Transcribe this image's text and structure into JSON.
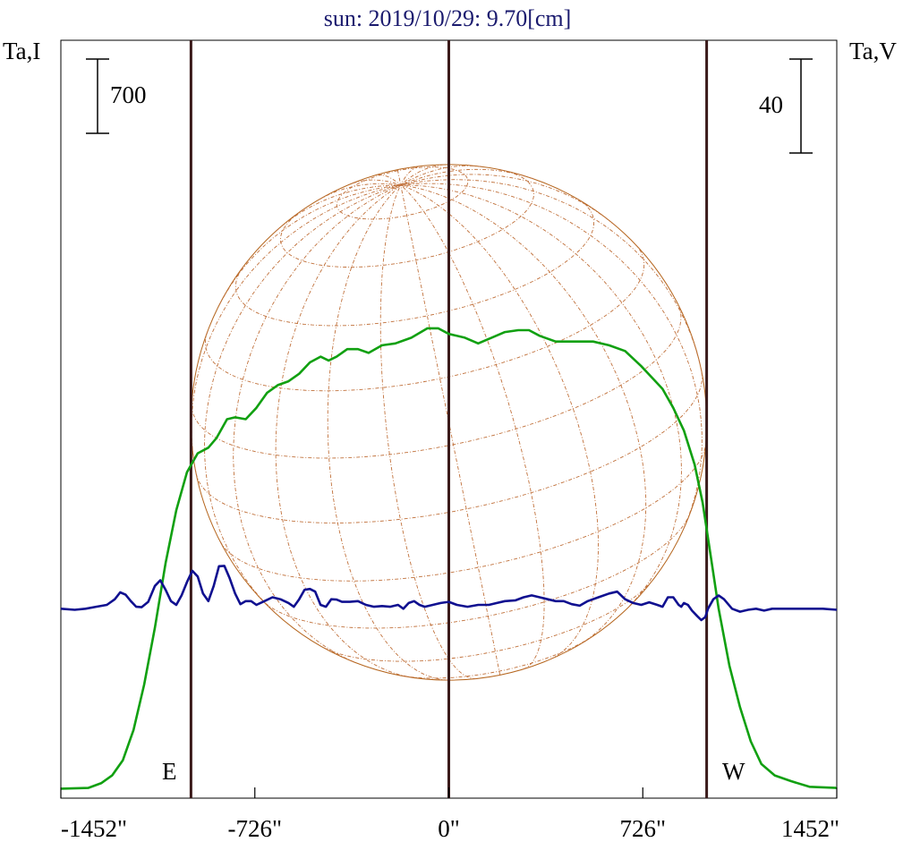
{
  "chart_data": {
    "type": "line",
    "title": "sun: 2019/10/29: 9.70[cm]",
    "title_color": "#1a1a6e",
    "left_axis_label": "Ta,I",
    "right_axis_label": "Ta,V",
    "x_unit": "arcsec",
    "xlim": [
      -1452,
      1452
    ],
    "x_ticks": [
      -1452,
      -726,
      0,
      726,
      1452
    ],
    "x_tick_labels": [
      "-1452\"",
      "-726\"",
      "0\"",
      "726\"",
      "1452\""
    ],
    "scale_bars": {
      "left": {
        "label": "700"
      },
      "right": {
        "label": "40"
      }
    },
    "limb_markers": {
      "east": "E",
      "west": "W"
    },
    "vertical_lines_x": [
      -965,
      0,
      965
    ],
    "disk_radius_arcsec": 965,
    "series": [
      {
        "color": "#11a011",
        "axis": "left",
        "values_y_frac": [
          [
            -1452,
            0.025
          ],
          [
            -1350,
            0.027
          ],
          [
            -1300,
            0.04
          ],
          [
            -1260,
            0.06
          ],
          [
            -1220,
            0.1
          ],
          [
            -1180,
            0.18
          ],
          [
            -1140,
            0.3
          ],
          [
            -1100,
            0.45
          ],
          [
            -1060,
            0.62
          ],
          [
            -1020,
            0.76
          ],
          [
            -980,
            0.86
          ],
          [
            -940,
            0.91
          ],
          [
            -900,
            0.925
          ],
          [
            -870,
            0.95
          ],
          [
            -830,
            1.0
          ],
          [
            -800,
            1.005
          ],
          [
            -760,
            1.0
          ],
          [
            -720,
            1.03
          ],
          [
            -680,
            1.07
          ],
          [
            -640,
            1.09
          ],
          [
            -600,
            1.1
          ],
          [
            -560,
            1.12
          ],
          [
            -520,
            1.15
          ],
          [
            -480,
            1.165
          ],
          [
            -450,
            1.155
          ],
          [
            -420,
            1.165
          ],
          [
            -380,
            1.185
          ],
          [
            -340,
            1.185
          ],
          [
            -300,
            1.175
          ],
          [
            -250,
            1.195
          ],
          [
            -200,
            1.2
          ],
          [
            -140,
            1.215
          ],
          [
            -80,
            1.24
          ],
          [
            -40,
            1.24
          ],
          [
            0,
            1.225
          ],
          [
            60,
            1.215
          ],
          [
            110,
            1.2
          ],
          [
            160,
            1.215
          ],
          [
            210,
            1.23
          ],
          [
            260,
            1.235
          ],
          [
            300,
            1.235
          ],
          [
            340,
            1.22
          ],
          [
            400,
            1.205
          ],
          [
            460,
            1.205
          ],
          [
            540,
            1.205
          ],
          [
            600,
            1.195
          ],
          [
            660,
            1.18
          ],
          [
            720,
            1.14
          ],
          [
            760,
            1.11
          ],
          [
            800,
            1.08
          ],
          [
            840,
            1.03
          ],
          [
            880,
            0.97
          ],
          [
            920,
            0.88
          ],
          [
            950,
            0.78
          ],
          [
            980,
            0.64
          ],
          [
            1010,
            0.5
          ],
          [
            1050,
            0.35
          ],
          [
            1090,
            0.24
          ],
          [
            1130,
            0.15
          ],
          [
            1170,
            0.09
          ],
          [
            1220,
            0.06
          ],
          [
            1280,
            0.045
          ],
          [
            1350,
            0.03
          ],
          [
            1452,
            0.027
          ]
        ]
      },
      {
        "color": "#101090",
        "axis": "right",
        "values_y_frac": [
          [
            -1452,
            0.5
          ],
          [
            -1400,
            0.497
          ],
          [
            -1360,
            0.5
          ],
          [
            -1320,
            0.505
          ],
          [
            -1280,
            0.51
          ],
          [
            -1250,
            0.525
          ],
          [
            -1230,
            0.543
          ],
          [
            -1210,
            0.537
          ],
          [
            -1190,
            0.52
          ],
          [
            -1170,
            0.505
          ],
          [
            -1150,
            0.504
          ],
          [
            -1125,
            0.518
          ],
          [
            -1100,
            0.56
          ],
          [
            -1080,
            0.575
          ],
          [
            -1060,
            0.55
          ],
          [
            -1040,
            0.52
          ],
          [
            -1020,
            0.51
          ],
          [
            -1000,
            0.535
          ],
          [
            -980,
            0.57
          ],
          [
            -960,
            0.6
          ],
          [
            -940,
            0.585
          ],
          [
            -920,
            0.54
          ],
          [
            -900,
            0.52
          ],
          [
            -880,
            0.56
          ],
          [
            -860,
            0.612
          ],
          [
            -840,
            0.613
          ],
          [
            -820,
            0.58
          ],
          [
            -800,
            0.54
          ],
          [
            -780,
            0.512
          ],
          [
            -760,
            0.52
          ],
          [
            -740,
            0.52
          ],
          [
            -720,
            0.51
          ],
          [
            -690,
            0.52
          ],
          [
            -660,
            0.53
          ],
          [
            -630,
            0.525
          ],
          [
            -600,
            0.515
          ],
          [
            -580,
            0.505
          ],
          [
            -560,
            0.525
          ],
          [
            -540,
            0.55
          ],
          [
            -520,
            0.552
          ],
          [
            -500,
            0.545
          ],
          [
            -480,
            0.51
          ],
          [
            -460,
            0.505
          ],
          [
            -440,
            0.525
          ],
          [
            -420,
            0.524
          ],
          [
            -400,
            0.518
          ],
          [
            -370,
            0.518
          ],
          [
            -340,
            0.52
          ],
          [
            -310,
            0.51
          ],
          [
            -280,
            0.505
          ],
          [
            -250,
            0.507
          ],
          [
            -220,
            0.505
          ],
          [
            -190,
            0.51
          ],
          [
            -170,
            0.5
          ],
          [
            -150,
            0.515
          ],
          [
            -130,
            0.52
          ],
          [
            -110,
            0.51
          ],
          [
            -90,
            0.505
          ],
          [
            -60,
            0.51
          ],
          [
            -30,
            0.515
          ],
          [
            0,
            0.518
          ],
          [
            30,
            0.51
          ],
          [
            70,
            0.505
          ],
          [
            110,
            0.51
          ],
          [
            150,
            0.51
          ],
          [
            180,
            0.515
          ],
          [
            210,
            0.52
          ],
          [
            250,
            0.522
          ],
          [
            280,
            0.53
          ],
          [
            310,
            0.535
          ],
          [
            340,
            0.53
          ],
          [
            370,
            0.525
          ],
          [
            400,
            0.52
          ],
          [
            430,
            0.52
          ],
          [
            460,
            0.512
          ],
          [
            490,
            0.508
          ],
          [
            520,
            0.52
          ],
          [
            560,
            0.53
          ],
          [
            600,
            0.54
          ],
          [
            630,
            0.545
          ],
          [
            660,
            0.525
          ],
          [
            690,
            0.515
          ],
          [
            720,
            0.51
          ],
          [
            750,
            0.517
          ],
          [
            780,
            0.51
          ],
          [
            800,
            0.505
          ],
          [
            820,
            0.53
          ],
          [
            840,
            0.53
          ],
          [
            860,
            0.51
          ],
          [
            870,
            0.505
          ],
          [
            880,
            0.515
          ],
          [
            895,
            0.51
          ],
          [
            910,
            0.495
          ],
          [
            930,
            0.48
          ],
          [
            945,
            0.47
          ],
          [
            960,
            0.478
          ],
          [
            970,
            0.5
          ],
          [
            990,
            0.525
          ],
          [
            1010,
            0.535
          ],
          [
            1030,
            0.525
          ],
          [
            1060,
            0.5
          ],
          [
            1090,
            0.492
          ],
          [
            1120,
            0.497
          ],
          [
            1150,
            0.5
          ],
          [
            1180,
            0.495
          ],
          [
            1210,
            0.5
          ],
          [
            1250,
            0.5
          ],
          [
            1300,
            0.5
          ],
          [
            1350,
            0.5
          ],
          [
            1400,
            0.5
          ],
          [
            1452,
            0.497
          ]
        ]
      }
    ]
  }
}
